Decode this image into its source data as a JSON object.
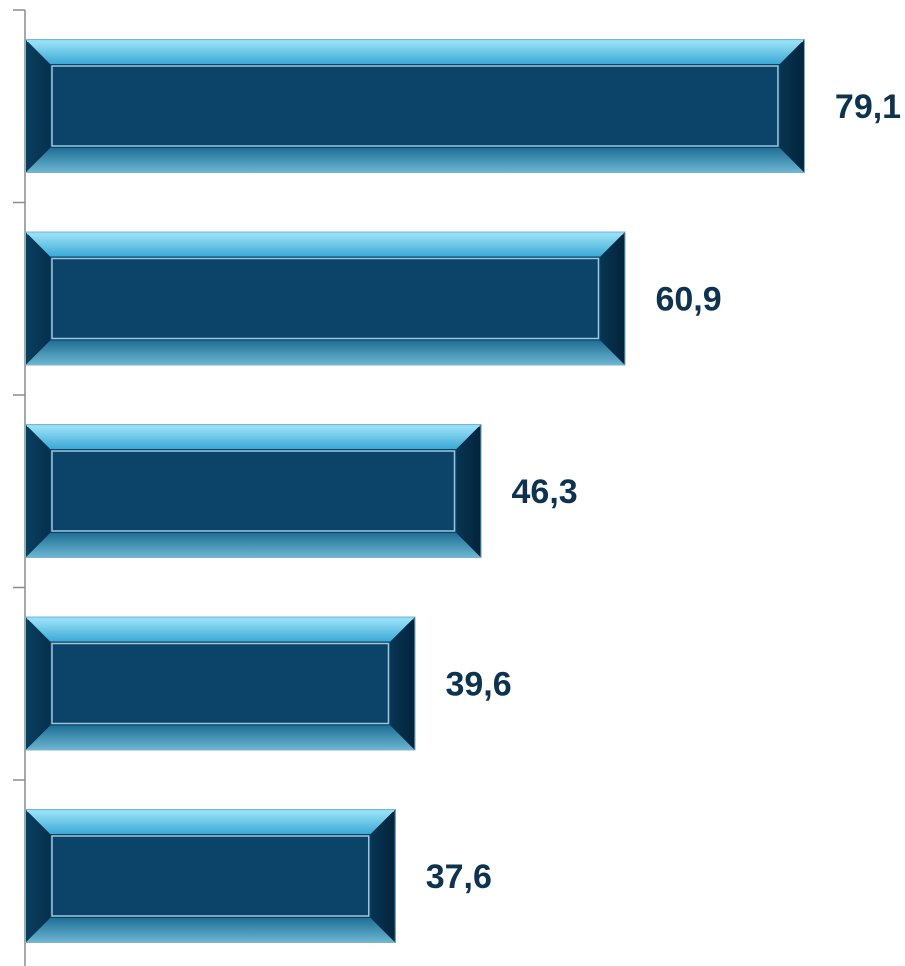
{
  "colors": {
    "bar_face": "#0b4468",
    "bar_dark": "#052a45",
    "bar_highlight": "#6fd0f2",
    "bar_top": "#8fdff8",
    "inner_border": "#9ec6d8",
    "label": "#0d3350",
    "axis": "#8c8c8c"
  },
  "chart_data": {
    "type": "bar",
    "orientation": "horizontal",
    "title": "",
    "xlabel": "",
    "ylabel": "",
    "categories": [
      "",
      "",
      "",
      "",
      ""
    ],
    "values": [
      79.1,
      60.9,
      46.3,
      39.6,
      37.6
    ],
    "value_labels": [
      "79,1",
      "60,9",
      "46,3",
      "39,6",
      "37,6"
    ],
    "xlim": [
      0,
      100
    ],
    "grid": false,
    "legend": "none"
  }
}
